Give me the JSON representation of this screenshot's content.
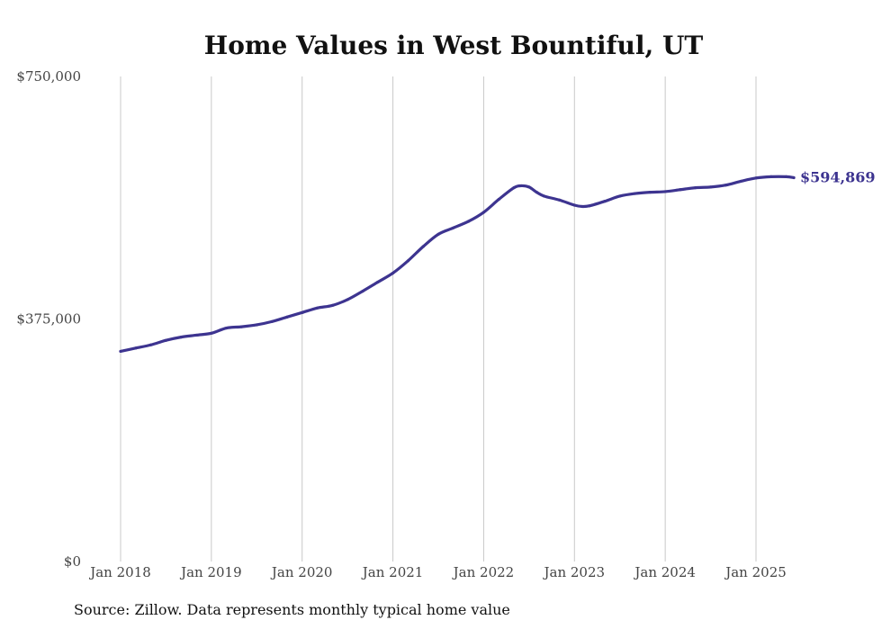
{
  "chart_data": {
    "type": "line",
    "title": "Home Values in West Bountiful, UT",
    "xlabel": "",
    "ylabel": "",
    "ylim": [
      0,
      750000
    ],
    "y_ticks": [
      0,
      375000,
      750000
    ],
    "y_tick_labels": [
      "$0",
      "$375,000",
      "$750,000"
    ],
    "x_ticks": [
      2018,
      2019,
      2020,
      2021,
      2022,
      2023,
      2024,
      2025
    ],
    "x_tick_labels": [
      "Jan 2018",
      "Jan 2019",
      "Jan 2020",
      "Jan 2021",
      "Jan 2022",
      "Jan 2023",
      "Jan 2024",
      "Jan 2025"
    ],
    "grid": "vertical",
    "line_color": "#3d3490",
    "end_label": "$594,869",
    "series": [
      {
        "x": [
          "2018-01",
          "2018-03",
          "2018-05",
          "2018-07",
          "2018-09",
          "2018-11",
          "2019-01",
          "2019-03",
          "2019-05",
          "2019-07",
          "2019-09",
          "2019-11",
          "2020-01",
          "2020-03",
          "2020-05",
          "2020-07",
          "2020-09",
          "2020-11",
          "2021-01",
          "2021-03",
          "2021-05",
          "2021-07",
          "2021-09",
          "2021-11",
          "2022-01",
          "2022-03",
          "2022-05",
          "2022-06",
          "2022-07",
          "2022-08",
          "2022-09",
          "2022-11",
          "2023-01",
          "2023-02",
          "2023-03",
          "2023-05",
          "2023-07",
          "2023-09",
          "2023-11",
          "2024-01",
          "2024-03",
          "2024-05",
          "2024-07",
          "2024-09",
          "2024-11",
          "2025-01",
          "2025-03",
          "2025-05",
          "2025-06"
        ],
        "values": [
          325000,
          330000,
          335000,
          342000,
          347000,
          350000,
          353000,
          361000,
          363000,
          366000,
          371000,
          378000,
          385000,
          392000,
          396000,
          405000,
          418000,
          432000,
          446000,
          465000,
          487000,
          506000,
          516000,
          526000,
          540000,
          560000,
          578000,
          581000,
          579000,
          571000,
          565000,
          559000,
          551000,
          549000,
          550000,
          557000,
          565000,
          569000,
          571000,
          572000,
          575000,
          578000,
          579000,
          582000,
          588000,
          593000,
          595000,
          595000,
          593500
        ]
      }
    ],
    "source_note": "Source: Zillow. Data represents monthly typical home value"
  }
}
